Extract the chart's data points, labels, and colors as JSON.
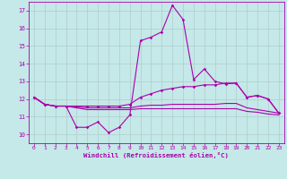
{
  "xlabel": "Windchill (Refroidissement éolien,°C)",
  "xlim": [
    -0.5,
    23.5
  ],
  "ylim": [
    9.5,
    17.5
  ],
  "yticks": [
    10,
    11,
    12,
    13,
    14,
    15,
    16,
    17
  ],
  "xticks": [
    0,
    1,
    2,
    3,
    4,
    5,
    6,
    7,
    8,
    9,
    10,
    11,
    12,
    13,
    14,
    15,
    16,
    17,
    18,
    19,
    20,
    21,
    22,
    23
  ],
  "background_color": "#c5e8e8",
  "grid_color": "#b0cccc",
  "line_color": "#aa00aa",
  "line1": [
    12.1,
    11.7,
    11.6,
    11.6,
    10.4,
    10.4,
    10.7,
    10.1,
    10.4,
    11.1,
    15.3,
    15.5,
    15.8,
    17.3,
    16.5,
    13.1,
    13.7,
    13.0,
    12.85,
    12.9,
    12.1,
    12.2,
    12.0,
    11.2
  ],
  "line2": [
    12.1,
    11.7,
    11.6,
    11.6,
    11.6,
    11.6,
    11.6,
    11.6,
    11.6,
    11.7,
    12.1,
    12.3,
    12.5,
    12.6,
    12.7,
    12.7,
    12.8,
    12.8,
    12.9,
    12.9,
    12.1,
    12.2,
    12.0,
    11.2
  ],
  "line3": [
    12.1,
    11.7,
    11.6,
    11.6,
    11.55,
    11.5,
    11.5,
    11.5,
    11.5,
    11.5,
    11.6,
    11.65,
    11.65,
    11.7,
    11.7,
    11.7,
    11.7,
    11.7,
    11.75,
    11.75,
    11.5,
    11.4,
    11.3,
    11.2
  ],
  "line4": [
    12.1,
    11.7,
    11.6,
    11.6,
    11.5,
    11.4,
    11.4,
    11.4,
    11.4,
    11.4,
    11.45,
    11.45,
    11.45,
    11.45,
    11.45,
    11.45,
    11.45,
    11.45,
    11.45,
    11.45,
    11.3,
    11.25,
    11.15,
    11.1
  ]
}
